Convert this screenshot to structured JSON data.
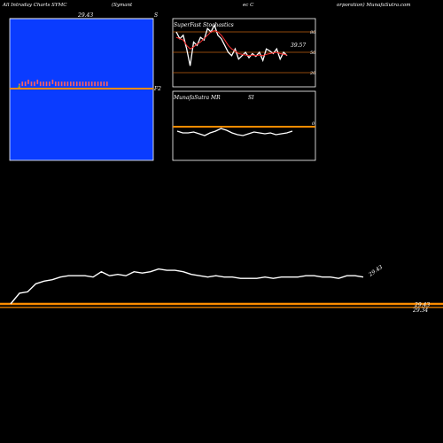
{
  "header": {
    "left": "All Intraday Charts SYMC",
    "middle": "(Symant",
    "middle2": "ec C",
    "right": "orporation) MunafaSutra.com"
  },
  "colors": {
    "panel_blue": "#0a3cff",
    "orange": "#ff8c00",
    "grid": "#c06010",
    "white": "#ffffff",
    "red": "#ff3030"
  },
  "chart_data": [
    {
      "type": "line",
      "panel": "intraday-price",
      "top_label": "29.43",
      "right_marker": "S",
      "last_label": "F2",
      "reference_line": 29.43,
      "x": [
        0,
        1,
        2,
        3,
        4,
        5,
        6,
        7,
        8,
        9,
        10,
        11,
        12,
        13,
        14,
        15,
        16,
        17,
        18,
        19,
        20,
        21,
        22,
        23,
        24,
        25,
        26,
        27,
        28,
        29
      ],
      "values": [
        29.27,
        29.28,
        29.28,
        29.29,
        29.28,
        29.28,
        29.29,
        29.28,
        29.28,
        29.28,
        29.28,
        29.29,
        29.28,
        29.28,
        29.28,
        29.28,
        29.28,
        29.28,
        29.28,
        29.28,
        29.28,
        29.28,
        29.28,
        29.28,
        29.28,
        29.28,
        29.28,
        29.28,
        29.28,
        29.28
      ],
      "ylim": [
        28.9,
        29.6
      ]
    },
    {
      "type": "line",
      "panel": "stochastics",
      "title": "SuperFast Stochastics",
      "current_value": "39.57",
      "yticks": [
        "80",
        "50",
        "20"
      ],
      "ylim": [
        0,
        100
      ],
      "series": [
        {
          "color": "#ffffff",
          "values": [
            80,
            70,
            75,
            55,
            30,
            65,
            60,
            72,
            68,
            85,
            80,
            90,
            75,
            70,
            60,
            50,
            45,
            55,
            40,
            45,
            50,
            42,
            48,
            44,
            50,
            38,
            55,
            52,
            48,
            55,
            40,
            50,
            45
          ]
        },
        {
          "color": "#ff3030",
          "values": [
            72,
            70,
            68,
            60,
            55,
            58,
            62,
            65,
            70,
            75,
            80,
            82,
            80,
            75,
            68,
            60,
            55,
            52,
            48,
            47,
            46,
            45,
            46,
            45,
            46,
            45,
            47,
            48,
            49,
            50,
            48,
            47,
            46
          ]
        }
      ]
    },
    {
      "type": "line",
      "panel": "mrsi",
      "title": "MunafaSutra MR",
      "title2": "SI",
      "ytick": "0",
      "values": [
        58,
        60,
        60,
        59,
        61,
        63,
        60,
        58,
        55,
        57,
        60,
        62,
        63,
        61,
        59,
        60,
        61,
        60,
        62,
        61,
        60,
        58
      ]
    },
    {
      "type": "line",
      "panel": "daily-price",
      "last_value_label": "29.43",
      "orange_labels": [
        "29.43",
        "29.34"
      ],
      "values": [
        29.18,
        29.19,
        29.25,
        29.27,
        29.28,
        29.3,
        29.31,
        29.31,
        29.31,
        29.3,
        29.34,
        29.31,
        29.32,
        29.31,
        29.34,
        29.33,
        29.34,
        29.36,
        29.35,
        29.35,
        29.34,
        29.32,
        29.31,
        29.3,
        29.31,
        29.3,
        29.3,
        29.29,
        29.29,
        29.29,
        29.3,
        29.29,
        29.3,
        29.3,
        29.3,
        29.31,
        29.31,
        29.3,
        29.3,
        29.29,
        29.31,
        29.31,
        29.3
      ],
      "ylim": [
        29.1,
        29.45
      ]
    }
  ]
}
